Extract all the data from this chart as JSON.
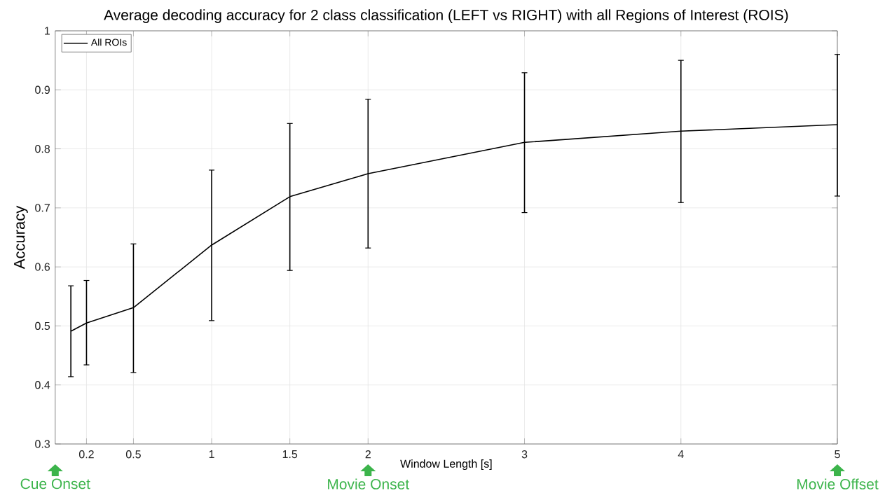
{
  "chart_data": {
    "type": "line",
    "title": "Average decoding accuracy for 2 class classification (LEFT vs RIGHT) with all Regions of Interest (ROIS)",
    "xlabel": "Window Length [s]",
    "ylabel": "Accuracy",
    "x": [
      0.1,
      0.2,
      0.5,
      1,
      1.5,
      2,
      3,
      4,
      5
    ],
    "series": [
      {
        "name": "All ROIs",
        "color": "#000000",
        "values": [
          0.491,
          0.505,
          0.531,
          0.637,
          0.719,
          0.758,
          0.811,
          0.83,
          0.841
        ],
        "errors": [
          [
            0.414,
            0.568
          ],
          [
            0.434,
            0.577
          ],
          [
            0.421,
            0.639
          ],
          [
            0.509,
            0.764
          ],
          [
            0.594,
            0.843
          ],
          [
            0.632,
            0.884
          ],
          [
            0.692,
            0.929
          ],
          [
            0.709,
            0.95
          ],
          [
            0.72,
            0.96
          ]
        ]
      }
    ],
    "xlim": [
      0,
      5
    ],
    "ylim": [
      0.3,
      1
    ],
    "xticks": [
      0.2,
      0.5,
      1,
      1.5,
      2,
      3,
      4,
      5
    ],
    "yticks": [
      0.3,
      0.4,
      0.5,
      0.6,
      0.7,
      0.8,
      0.9,
      1
    ],
    "grid": true,
    "legend": "top left",
    "marker": "none",
    "line_style": "solid",
    "annotations": [
      "Cue Onset",
      "Movie Onset",
      "Movie Offset"
    ]
  }
}
